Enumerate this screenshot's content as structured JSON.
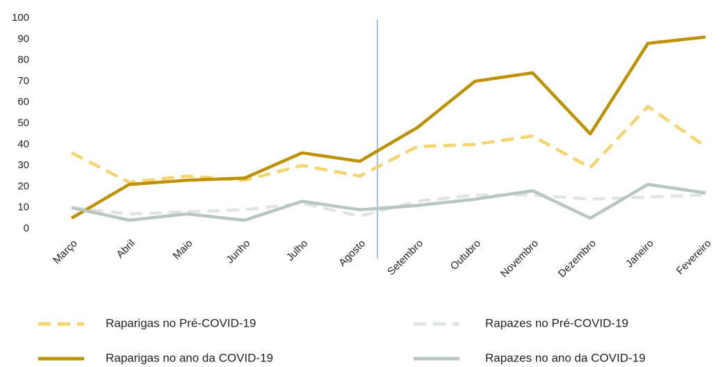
{
  "chart_data": {
    "type": "line",
    "categories": [
      "Março",
      "Abril",
      "Maio",
      "Junho",
      "Julho",
      "Agosto",
      "Setembro",
      "Outubro",
      "Novembro",
      "Dezembro",
      "Janeiro",
      "Fevereiro"
    ],
    "series": [
      {
        "name": "Raparigas no Pré-COVID-19",
        "color": "#f6d46b",
        "dashed": true,
        "values": [
          36,
          22,
          25,
          23,
          30,
          25,
          39,
          40,
          44,
          29,
          58,
          39
        ]
      },
      {
        "name": "Rapazes no Pré-COVID-19",
        "color": "#dfe5e1",
        "dashed": true,
        "values": [
          10,
          7,
          8,
          9,
          12,
          6,
          13,
          16,
          16,
          14,
          15,
          16
        ]
      },
      {
        "name": "Raparigas no ano da COVID-19",
        "color": "#bf9000",
        "dashed": false,
        "values": [
          5,
          21,
          23,
          24,
          36,
          32,
          48,
          70,
          74,
          45,
          88,
          91
        ]
      },
      {
        "name": "Rapazes no ano da COVID-19",
        "color": "#b7c7bf",
        "dashed": false,
        "values": [
          10,
          4,
          7,
          4,
          13,
          9,
          11,
          14,
          18,
          5,
          21,
          17
        ]
      }
    ],
    "ylim": [
      0,
      100
    ],
    "yticks": [
      0,
      10,
      20,
      30,
      40,
      50,
      60,
      70,
      80,
      90,
      100
    ],
    "grid": false
  }
}
